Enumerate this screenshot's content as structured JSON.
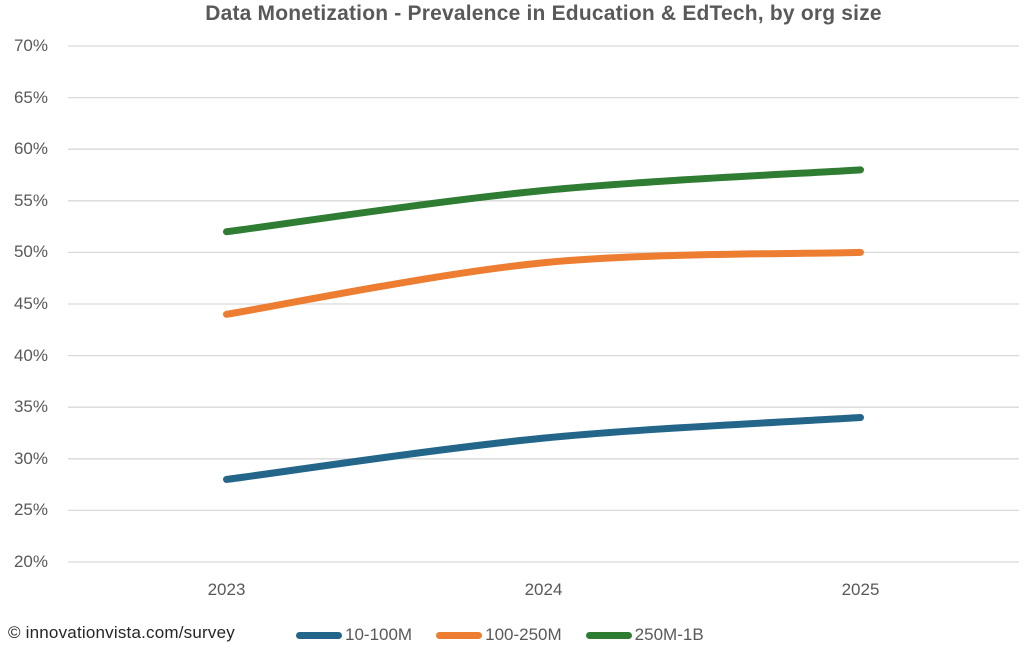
{
  "footer": {
    "text": "© innovationvista.com/survey"
  },
  "chart_data": {
    "type": "line",
    "title": "Data Monetization - Prevalence in Education & EdTech, by org size",
    "categories": [
      "2023",
      "2024",
      "2025"
    ],
    "series": [
      {
        "name": "10-100M",
        "color": "#236689",
        "values": [
          28,
          32,
          34
        ]
      },
      {
        "name": "100-250M",
        "color": "#ed7d31",
        "values": [
          44,
          49,
          50
        ]
      },
      {
        "name": "250M-1B",
        "color": "#2e7d33",
        "values": [
          52,
          56,
          58
        ]
      }
    ],
    "xlabel": "",
    "ylabel": "",
    "ylim": [
      20,
      70
    ],
    "y_ticks": [
      {
        "label": "70%",
        "value": 70
      },
      {
        "label": "65%",
        "value": 65
      },
      {
        "label": "60%",
        "value": 60
      },
      {
        "label": "55%",
        "value": 55
      },
      {
        "label": "50%",
        "value": 50
      },
      {
        "label": "45%",
        "value": 45
      },
      {
        "label": "40%",
        "value": 40
      },
      {
        "label": "35%",
        "value": 35
      },
      {
        "label": "30%",
        "value": 30
      },
      {
        "label": "25%",
        "value": 25
      },
      {
        "label": "20%",
        "value": 20
      }
    ],
    "grid": "horizontal",
    "gridline_color": "#d9d9d9",
    "legend_position": "bottom"
  }
}
